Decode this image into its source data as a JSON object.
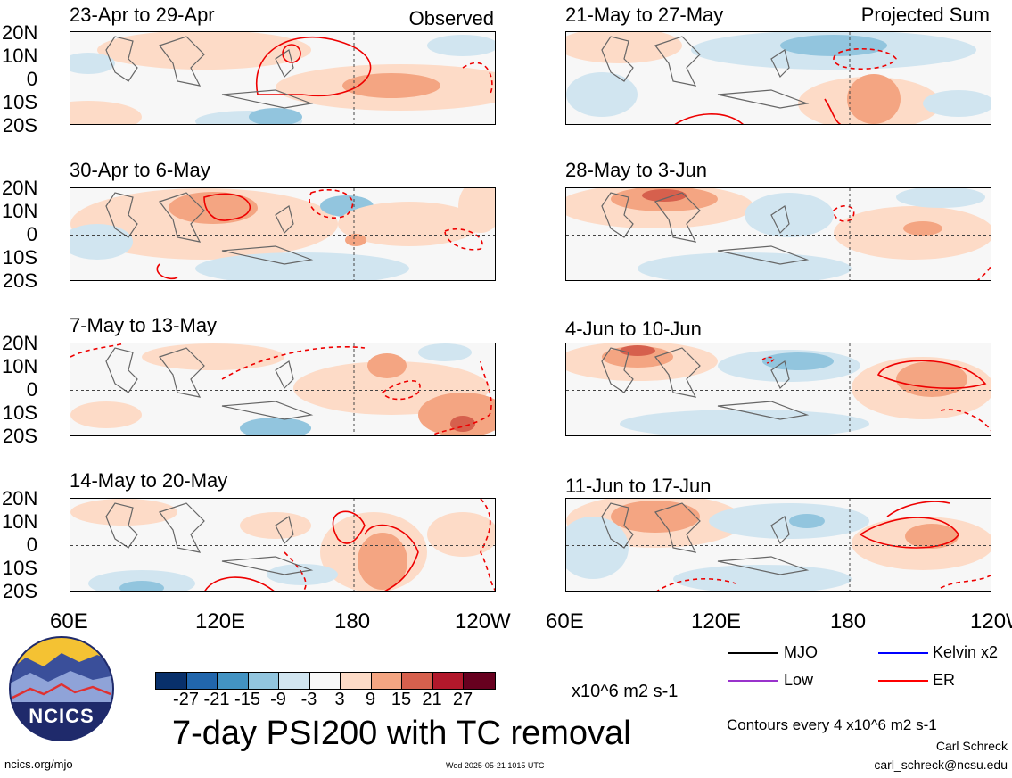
{
  "panels_left": [
    {
      "title": "23-Apr to 29-Apr",
      "label": "Observed"
    },
    {
      "title": "30-Apr to 6-May",
      "label": ""
    },
    {
      "title": "7-May to 13-May",
      "label": ""
    },
    {
      "title": "14-May to 20-May",
      "label": ""
    }
  ],
  "panels_right": [
    {
      "title": "21-May to 27-May",
      "label": "Projected Sum"
    },
    {
      "title": "28-May to 3-Jun",
      "label": ""
    },
    {
      "title": "4-Jun to 10-Jun",
      "label": ""
    },
    {
      "title": "11-Jun to 17-Jun",
      "label": ""
    }
  ],
  "lat_labels": [
    "20N",
    "10N",
    "0",
    "10S",
    "20S"
  ],
  "lon_labels": [
    "60E",
    "120E",
    "180",
    "120W"
  ],
  "colorbar": {
    "colors": [
      "#08306b",
      "#2166ac",
      "#4393c3",
      "#92c5de",
      "#d1e5f0",
      "#f7f7f7",
      "#fddbc7",
      "#f4a582",
      "#d6604d",
      "#b2182b",
      "#67001f"
    ],
    "labels": [
      "-27",
      "-21",
      "-15",
      "-9",
      "-3",
      "3",
      "9",
      "15",
      "21",
      "27"
    ],
    "units": "x10^6 m2 s-1"
  },
  "main_title": "7-day PSI200 with TC removal",
  "legend": [
    {
      "label": "MJO",
      "color": "#000000"
    },
    {
      "label": "Kelvin x2",
      "color": "#0000ff"
    },
    {
      "label": "Low",
      "color": "#9932cc"
    },
    {
      "label": "ER",
      "color": "#ff0000"
    }
  ],
  "contour_note": "Contours every 4 x10^6 m2 s-1",
  "author": "Carl Schreck",
  "email": "carl_schreck@ncsu.edu",
  "website": "ncics.org/mjo",
  "timestamp": "Wed 2025-05-21 1015 UTC",
  "logo_text": "NCICS"
}
